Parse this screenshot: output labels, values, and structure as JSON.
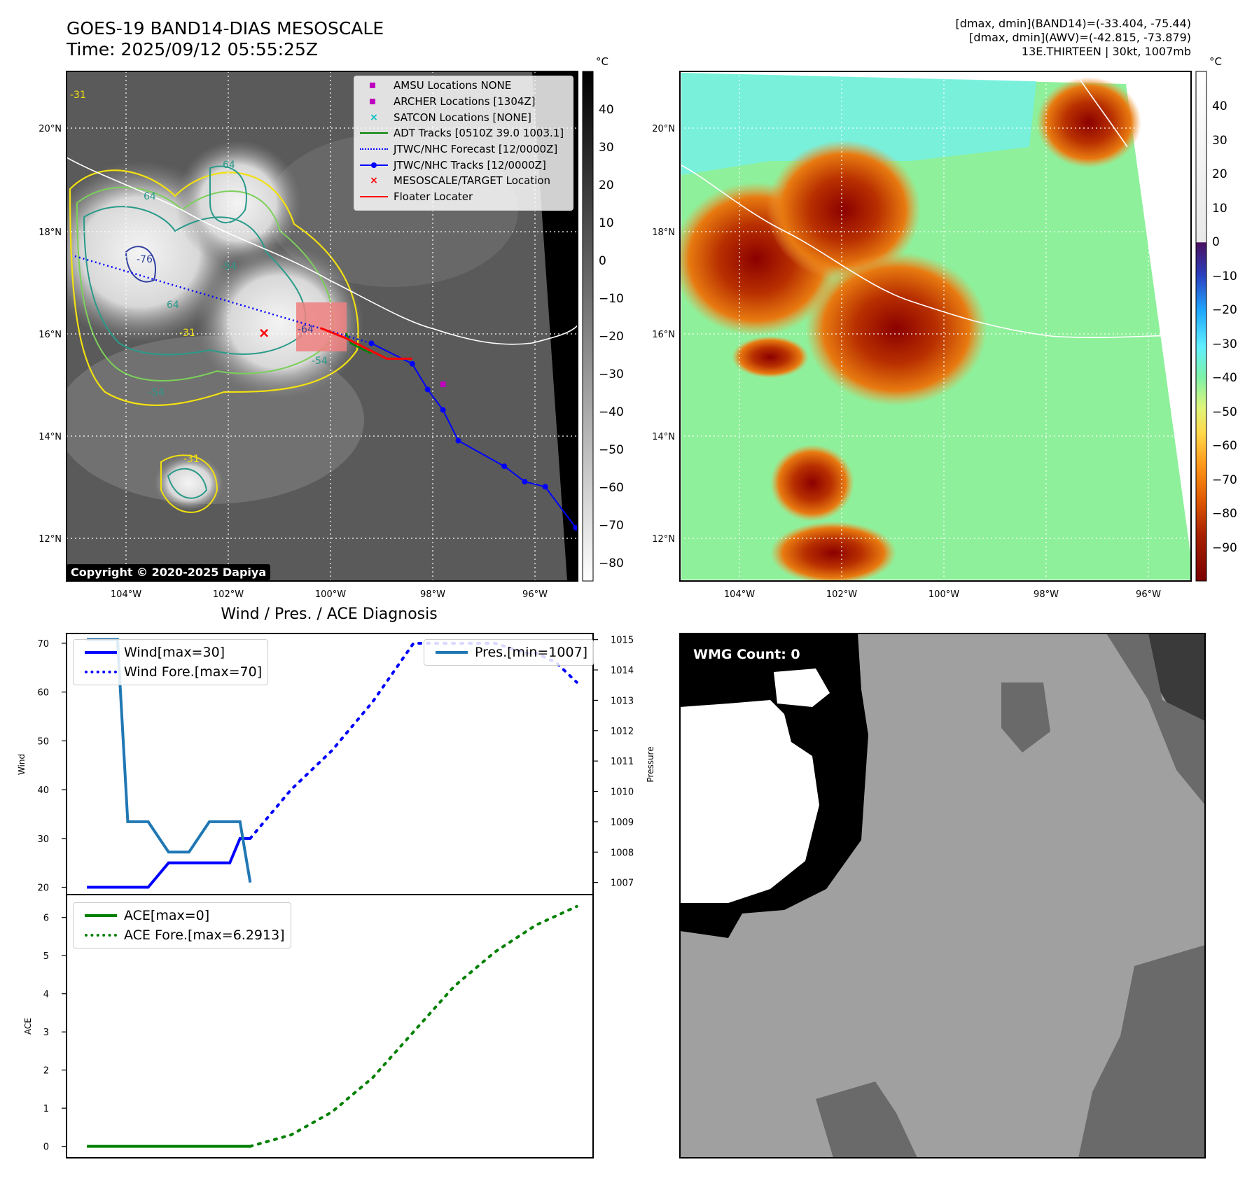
{
  "header": {
    "title_line1": "GOES-19 BAND14-DIAS MESOSCALE",
    "title_line2": "Time: 2025/09/12 05:55:25Z",
    "info_line1": "[dmax, dmin](BAND14)=(-33.404, -75.44)",
    "info_line2": "[dmax, dmin](AWV)=(-42.815, -73.879)",
    "info_line3": "13E.THIRTEEN | 30kt, 1007mb"
  },
  "map_ir": {
    "lat_labels": [
      "20°N",
      "18°N",
      "16°N",
      "14°N",
      "12°N"
    ],
    "lon_labels": [
      "104°W",
      "102°W",
      "100°W",
      "98°W",
      "96°W"
    ],
    "copyright": "Copyright © 2020-2025 Dapiya",
    "colorbar_unit": "°C",
    "colorbar_ticks": [
      "40",
      "30",
      "20",
      "10",
      "0",
      "−10",
      "−20",
      "−30",
      "−40",
      "−50",
      "−60",
      "−70",
      "−80"
    ],
    "contour_labels": [
      "64",
      "64",
      "64",
      "-76",
      "-54",
      "-54",
      "-54",
      "-31",
      "-31",
      "-31",
      "-64"
    ],
    "legend": [
      {
        "label": "AMSU Locations NONE",
        "key": "square",
        "color": "#bf00bf"
      },
      {
        "label": "ARCHER Locations [1304Z]",
        "key": "square",
        "color": "#bf00bf"
      },
      {
        "label": "SATCON Locations [NONE]",
        "key": "x",
        "color": "#00bfbf"
      },
      {
        "label": "ADT Tracks [0510Z 39.0 1003.1]",
        "key": "line",
        "color": "#008000"
      },
      {
        "label": "JTWC/NHC Forecast [12/0000Z]",
        "key": "dotted",
        "color": "#0000ff"
      },
      {
        "label": "JTWC/NHC Tracks [12/0000Z]",
        "key": "line-dot",
        "color": "#0000ff"
      },
      {
        "label": "MESOSCALE/TARGET Location",
        "key": "x",
        "color": "#ff0000"
      },
      {
        "label": "Floater Locater",
        "key": "line",
        "color": "#ff0000"
      }
    ],
    "track_nhc": [
      [
        -99.2,
        15.8
      ],
      [
        -98.4,
        15.4
      ],
      [
        -98.1,
        14.9
      ],
      [
        -97.8,
        14.5
      ],
      [
        -97.5,
        13.9
      ],
      [
        -96.6,
        13.4
      ],
      [
        -96.2,
        13.1
      ],
      [
        -95.8,
        13.0
      ],
      [
        -95.2,
        12.2
      ]
    ],
    "track_forecast_start": [
      -105.0,
      17.5
    ],
    "track_adt": [
      [
        -99.7,
        16.0
      ],
      [
        -99.6,
        15.8
      ],
      [
        -99.2,
        15.6
      ]
    ],
    "floater_track": [
      [
        -100.2,
        16.1
      ],
      [
        -99.7,
        15.9
      ],
      [
        -99.3,
        15.7
      ],
      [
        -98.9,
        15.5
      ],
      [
        -98.4,
        15.5
      ]
    ],
    "archer_location": [
      -97.8,
      15.0
    ],
    "target_location": [
      -101.3,
      16.0
    ]
  },
  "map_awv": {
    "lat_labels": [
      "20°N",
      "18°N",
      "16°N",
      "14°N",
      "12°N"
    ],
    "lon_labels": [
      "104°W",
      "102°W",
      "100°W",
      "98°W",
      "96°W"
    ],
    "colorbar_unit": "°C",
    "colorbar_ticks": [
      "40",
      "30",
      "20",
      "10",
      "0",
      "−10",
      "−20",
      "−30",
      "−40",
      "−50",
      "−60",
      "−70",
      "−80",
      "−90"
    ]
  },
  "chart_data": [
    {
      "type": "line",
      "title": "Wind / Pres. / ACE Diagnosis",
      "ylabel": "Wind",
      "y2label": "Pressure",
      "ylim": [
        18.5,
        72
      ],
      "y2lim": [
        1006.6,
        1015.2
      ],
      "yticks": [
        "70",
        "60",
        "50",
        "40",
        "30",
        "20"
      ],
      "y2ticks": [
        "1015",
        "1014",
        "1013",
        "1012",
        "1011",
        "1010",
        "1009",
        "1008",
        "1007"
      ],
      "legend_left": [
        "Wind[max=30]",
        "Wind Fore.[max=70]"
      ],
      "legend_right": [
        "Pres.[min=1007]"
      ],
      "series": [
        {
          "name": "Wind[max=30]",
          "color": "#0000ff",
          "style": "solid",
          "x": [
            0,
            1,
            2,
            3,
            4,
            5,
            6,
            7,
            7.5,
            8
          ],
          "values": [
            20,
            20,
            20,
            20,
            25,
            25,
            25,
            25,
            30,
            30
          ]
        },
        {
          "name": "Wind Fore.[max=70]",
          "color": "#0000ff",
          "style": "dotted",
          "x": [
            8,
            10,
            12,
            14,
            16,
            18,
            20,
            21.5,
            22,
            23,
            24
          ],
          "values": [
            30,
            40,
            48,
            58,
            70,
            70,
            70,
            68,
            68,
            66,
            62
          ]
        },
        {
          "name": "Pres.[min=1007]",
          "color": "#1f77b4",
          "style": "solid",
          "axis": "y2",
          "x": [
            0,
            1,
            1.5,
            2,
            3,
            4,
            5,
            6,
            7,
            7.5,
            8
          ],
          "values": [
            1015,
            1015,
            1015,
            1009,
            1009,
            1008,
            1008,
            1009,
            1009,
            1009,
            1007
          ]
        }
      ],
      "xlim": [
        -1,
        24.8
      ]
    },
    {
      "type": "line",
      "ylabel": "ACE",
      "ylim": [
        -0.3,
        6.6
      ],
      "yticks": [
        "6",
        "5",
        "4",
        "3",
        "2",
        "1",
        "0"
      ],
      "legend": [
        "ACE[max=0]",
        "ACE Fore.[max=6.2913]"
      ],
      "series": [
        {
          "name": "ACE[max=0]",
          "color": "#008000",
          "style": "solid",
          "x": [
            0,
            8
          ],
          "values": [
            0,
            0
          ]
        },
        {
          "name": "ACE Fore.[max=6.2913]",
          "color": "#008000",
          "style": "dotted",
          "x": [
            8,
            10,
            12,
            14,
            16,
            18,
            20,
            22,
            24
          ],
          "values": [
            0,
            0.3,
            0.9,
            1.8,
            3.0,
            4.2,
            5.1,
            5.8,
            6.29
          ]
        }
      ],
      "xlim": [
        -1,
        24.8
      ]
    }
  ],
  "wmg": {
    "label": "WMG Count: 0"
  }
}
